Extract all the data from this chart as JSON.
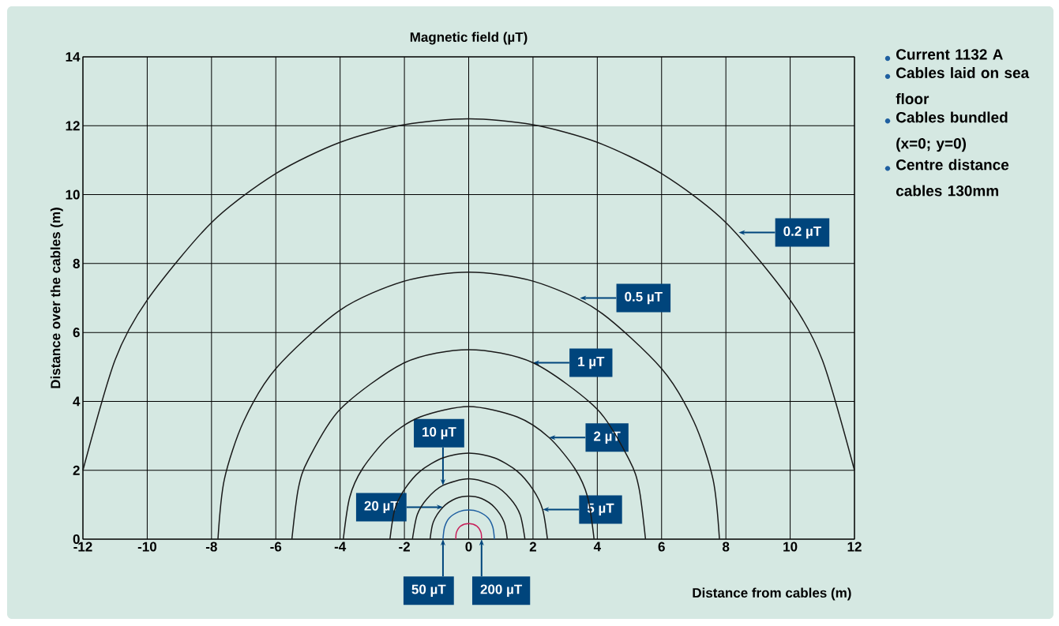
{
  "chart_data": {
    "type": "line",
    "title": "Magnetic field (µT)",
    "xlabel": "Distance from cables (m)",
    "ylabel": "Distance over the cables (m)",
    "xlim": [
      -12,
      12
    ],
    "ylim": [
      0,
      14
    ],
    "xticks": [
      -12,
      -10,
      -8,
      -6,
      -4,
      -2,
      0,
      2,
      4,
      6,
      8,
      10,
      12
    ],
    "yticks": [
      0,
      2,
      4,
      6,
      8,
      10,
      12,
      14
    ],
    "grid": true,
    "series": [
      {
        "color": "#1a1a1a",
        "x": [
          -12,
          -11,
          -10,
          -8,
          -6,
          -4,
          -2,
          0,
          2,
          4,
          6,
          8,
          10,
          11,
          12
        ],
        "values": [
          2.0,
          5.2,
          6.94,
          9.19,
          10.61,
          11.52,
          12.03,
          12.2,
          12.03,
          11.52,
          10.61,
          9.19,
          6.94,
          5.2,
          2.0
        ]
      },
      {
        "color": "#1a1a1a",
        "x": [
          -7.8,
          -7.6,
          -7,
          -6,
          -4,
          -2,
          0,
          2,
          4,
          6,
          7,
          7.6,
          7.8
        ],
        "values": [
          0,
          1.74,
          3.42,
          4.95,
          6.65,
          7.49,
          7.75,
          7.49,
          6.65,
          4.95,
          3.42,
          1.74,
          0
        ]
      },
      {
        "color": "#1a1a1a",
        "x": [
          -5.5,
          -5.3,
          -5,
          -4,
          -2,
          0,
          2,
          4,
          5,
          5.3,
          5.5
        ],
        "values": [
          0,
          1.47,
          2.29,
          3.77,
          5.12,
          5.5,
          5.12,
          3.77,
          2.29,
          1.47,
          0
        ]
      },
      {
        "color": "#1a1a1a",
        "x": [
          -3.9,
          -3.7,
          -3.3,
          -2.5,
          -1.5,
          0,
          1.5,
          2.5,
          3.3,
          3.7,
          3.9
        ],
        "values": [
          0,
          1.22,
          2.05,
          2.95,
          3.55,
          3.85,
          3.55,
          2.95,
          2.05,
          1.22,
          0
        ]
      },
      {
        "color": "#1a1a1a",
        "x": [
          -2.45,
          -2.3,
          -2,
          -1.5,
          -0.8,
          0,
          0.8,
          1.5,
          2,
          2.3,
          2.45
        ],
        "values": [
          0,
          0.86,
          1.44,
          1.98,
          2.36,
          2.5,
          2.36,
          1.98,
          1.44,
          0.86,
          0
        ]
      },
      {
        "color": "#1a1a1a",
        "x": [
          -1.75,
          -1.6,
          -1.3,
          -0.8,
          0,
          0.8,
          1.3,
          1.6,
          1.75
        ],
        "values": [
          0,
          0.71,
          1.17,
          1.56,
          1.75,
          1.56,
          1.17,
          0.71,
          0
        ]
      },
      {
        "color": "#1a1a1a",
        "x": [
          -1.2,
          -1.1,
          -0.8,
          -0.4,
          0,
          0.4,
          0.8,
          1.1,
          1.2
        ],
        "values": [
          0,
          0.5,
          0.93,
          1.18,
          1.25,
          1.18,
          0.93,
          0.5,
          0
        ]
      },
      {
        "color": "#1f5fa0",
        "x": [
          -0.8,
          -0.75,
          -0.6,
          -0.3,
          0,
          0.3,
          0.6,
          0.75,
          0.8
        ],
        "values": [
          0,
          0.35,
          0.62,
          0.8,
          0.85,
          0.8,
          0.62,
          0.35,
          0
        ]
      },
      {
        "color": "#c8205a",
        "x": [
          -0.4,
          -0.38,
          -0.25,
          0,
          0.25,
          0.38,
          0.4
        ],
        "values": [
          0,
          0.2,
          0.38,
          0.45,
          0.38,
          0.2,
          0
        ]
      }
    ],
    "annotations": [
      {
        "text": "0.2 µT",
        "x": 8.4,
        "y": 8.9
      },
      {
        "text": "0.5 µT",
        "x": 3.46,
        "y": 7.0
      },
      {
        "text": "1 µT",
        "x": 2,
        "y": 5.12
      },
      {
        "text": "2 µT",
        "x": 2.5,
        "y": 2.95
      },
      {
        "text": "5 µT",
        "x": 2.3,
        "y": 0.86
      },
      {
        "text": "10 µT",
        "x": -0.8,
        "y": 1.56
      },
      {
        "text": "20 µT",
        "x": -0.8,
        "y": 0.93
      },
      {
        "text": "50 µT",
        "x": -0.8,
        "y": 0
      },
      {
        "text": "200 µT",
        "x": 0.4,
        "y": 0
      },
      "Current 1132 A",
      "Cables laid on sea floor",
      "Cables bundled (x=0; y=0)",
      "Centre distance cables 130mm"
    ]
  }
}
